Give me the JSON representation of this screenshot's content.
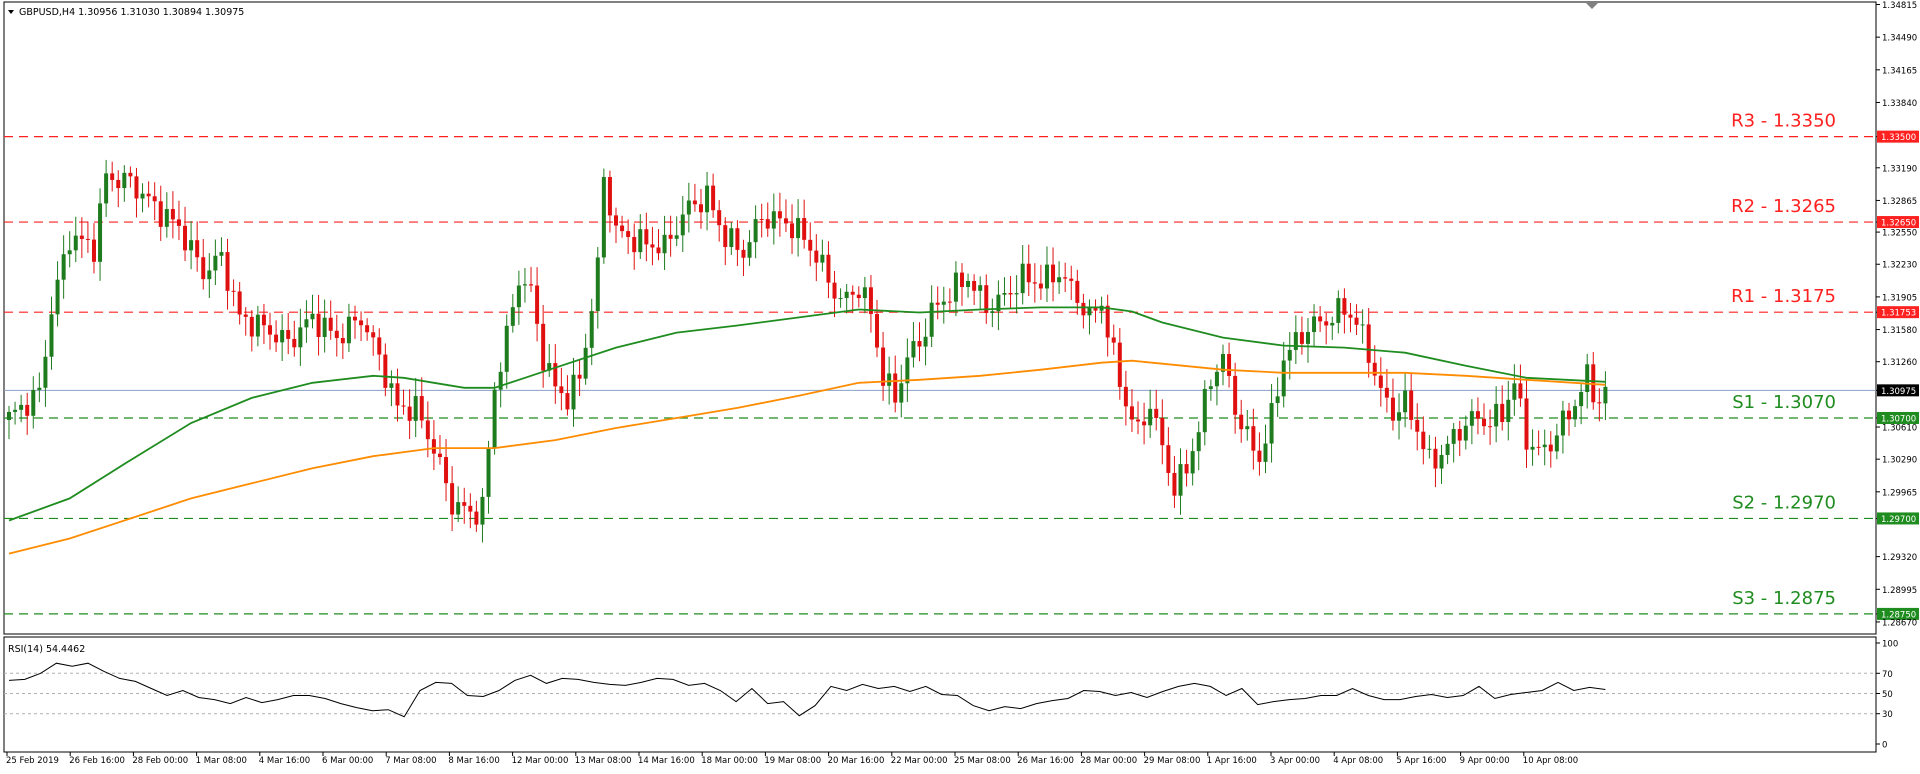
{
  "window": {
    "symbol_info": "GBPUSD,H4  1.30956 1.31030 1.30894 1.30975"
  },
  "rsi_panel": {
    "label": "RSI(14) 54.4462"
  },
  "colors": {
    "up_candle": "#1e7b1e",
    "down_candle": "#e01010",
    "ma_green": "#1f8c1f",
    "ma_orange": "#ff8c00",
    "resistance": "#ff2020",
    "support": "#1f8c1f",
    "current_price_line": "#8aa0c8",
    "rsi_line": "#000000",
    "frame": "#000000"
  },
  "chart_data": [
    {
      "type": "candlestick",
      "title": "GBPUSD,H4",
      "timeframe": "H4",
      "ohlc_last": {
        "open": 1.30956,
        "high": 1.3103,
        "low": 1.30894,
        "close": 1.30975
      },
      "ylim": [
        1.2855,
        1.3484
      ],
      "y_ticks": [
        "1.34815",
        "1.34490",
        "1.34165",
        "1.33840",
        "1.33500",
        "1.33190",
        "1.32865",
        "1.32650",
        "1.32550",
        "1.32230",
        "1.31905",
        "1.31753",
        "1.31580",
        "1.31260",
        "1.30975",
        "1.30700",
        "1.30610",
        "1.30290",
        "1.29965",
        "1.29700",
        "1.29320",
        "1.28995",
        "1.28750",
        "1.28670"
      ],
      "y_ticks_values": [
        1.34815,
        1.3449,
        1.34165,
        1.3384,
        1.335,
        1.3319,
        1.32865,
        1.3265,
        1.3255,
        1.3223,
        1.31905,
        1.31753,
        1.3158,
        1.3126,
        1.30975,
        1.307,
        1.3061,
        1.3029,
        1.29965,
        1.297,
        1.2932,
        1.28995,
        1.2875,
        1.2867
      ],
      "x_labels": [
        "25 Feb 2019",
        "26 Feb 16:00",
        "28 Feb 00:00",
        "1 Mar 08:00",
        "4 Mar 16:00",
        "6 Mar 00:00",
        "7 Mar 08:00",
        "8 Mar 16:00",
        "12 Mar 00:00",
        "13 Mar 08:00",
        "14 Mar 16:00",
        "18 Mar 00:00",
        "19 Mar 08:00",
        "20 Mar 16:00",
        "22 Mar 00:00",
        "25 Mar 08:00",
        "26 Mar 16:00",
        "28 Mar 00:00",
        "29 Mar 08:00",
        "1 Apr 16:00",
        "3 Apr 00:00",
        "4 Apr 08:00",
        "5 Apr 16:00",
        "9 Apr 00:00",
        "10 Apr 08:00"
      ],
      "levels": [
        {
          "label": "R3 - 1.3350",
          "tag": "1.33500",
          "value": 1.335,
          "kind": "resistance"
        },
        {
          "label": "R2 - 1.3265",
          "tag": "1.32650",
          "value": 1.3265,
          "kind": "resistance"
        },
        {
          "label": "R1 - 1.3175",
          "tag": "1.31753",
          "value": 1.31753,
          "kind": "resistance"
        },
        {
          "label": "S1 - 1.3070",
          "tag": "1.30700",
          "value": 1.307,
          "kind": "support"
        },
        {
          "label": "S2 - 1.2970",
          "tag": "1.29700",
          "value": 1.297,
          "kind": "support"
        },
        {
          "label": "S3 - 1.2875",
          "tag": "1.28750",
          "value": 1.2875,
          "kind": "support"
        }
      ],
      "current_price": {
        "tag": "1.30975",
        "value": 1.30975
      },
      "closes_anchor": [
        [
          0,
          1.307
        ],
        [
          5,
          1.3095
        ],
        [
          7,
          1.3178
        ],
        [
          10,
          1.325
        ],
        [
          14,
          1.324
        ],
        [
          16,
          1.331
        ],
        [
          20,
          1.3305
        ],
        [
          24,
          1.328
        ],
        [
          28,
          1.326
        ],
        [
          32,
          1.3215
        ],
        [
          35,
          1.323
        ],
        [
          38,
          1.317
        ],
        [
          42,
          1.316
        ],
        [
          46,
          1.3145
        ],
        [
          50,
          1.317
        ],
        [
          54,
          1.315
        ],
        [
          58,
          1.317
        ],
        [
          61,
          1.313
        ],
        [
          64,
          1.308
        ],
        [
          67,
          1.308
        ],
        [
          70,
          1.304
        ],
        [
          73,
          1.2985
        ],
        [
          76,
          1.2975
        ],
        [
          78,
          1.298
        ],
        [
          80,
          1.31
        ],
        [
          82,
          1.315
        ],
        [
          84,
          1.321
        ],
        [
          86,
          1.3195
        ],
        [
          88,
          1.313
        ],
        [
          90,
          1.31
        ],
        [
          92,
          1.309
        ],
        [
          94,
          1.311
        ],
        [
          96,
          1.318
        ],
        [
          97,
          1.322
        ],
        [
          98,
          1.331
        ],
        [
          100,
          1.3255
        ],
        [
          104,
          1.3245
        ],
        [
          108,
          1.324
        ],
        [
          112,
          1.328
        ],
        [
          115,
          1.329
        ],
        [
          118,
          1.325
        ],
        [
          121,
          1.3235
        ],
        [
          124,
          1.327
        ],
        [
          128,
          1.3265
        ],
        [
          131,
          1.325
        ],
        [
          134,
          1.322
        ],
        [
          137,
          1.3185
        ],
        [
          140,
          1.32
        ],
        [
          142,
          1.3175
        ],
        [
          144,
          1.311
        ],
        [
          146,
          1.309
        ],
        [
          148,
          1.313
        ],
        [
          150,
          1.3145
        ],
        [
          152,
          1.3175
        ],
        [
          155,
          1.3195
        ],
        [
          158,
          1.321
        ],
        [
          161,
          1.318
        ],
        [
          164,
          1.319
        ],
        [
          167,
          1.321
        ],
        [
          170,
          1.3205
        ],
        [
          173,
          1.3215
        ],
        [
          176,
          1.319
        ],
        [
          178,
          1.317
        ],
        [
          180,
          1.3185
        ],
        [
          182,
          1.313
        ],
        [
          184,
          1.3085
        ],
        [
          186,
          1.3055
        ],
        [
          188,
          1.3085
        ],
        [
          190,
          1.304
        ],
        [
          192,
          1.3
        ],
        [
          194,
          1.302
        ],
        [
          196,
          1.306
        ],
        [
          198,
          1.311
        ],
        [
          200,
          1.313
        ],
        [
          202,
          1.308
        ],
        [
          204,
          1.305
        ],
        [
          206,
          1.303
        ],
        [
          208,
          1.307
        ],
        [
          210,
          1.313
        ],
        [
          212,
          1.3145
        ],
        [
          214,
          1.316
        ],
        [
          216,
          1.3165
        ],
        [
          218,
          1.317
        ],
        [
          220,
          1.318
        ],
        [
          222,
          1.3165
        ],
        [
          224,
          1.3135
        ],
        [
          226,
          1.3095
        ],
        [
          228,
          1.3075
        ],
        [
          230,
          1.3085
        ],
        [
          232,
          1.306
        ],
        [
          234,
          1.3025
        ],
        [
          236,
          1.3035
        ],
        [
          238,
          1.305
        ],
        [
          240,
          1.3065
        ],
        [
          242,
          1.307
        ],
        [
          244,
          1.3065
        ],
        [
          246,
          1.3075
        ],
        [
          248,
          1.3105
        ],
        [
          250,
          1.305
        ],
        [
          252,
          1.3035
        ],
        [
          254,
          1.3045
        ],
        [
          256,
          1.3065
        ],
        [
          258,
          1.3085
        ],
        [
          260,
          1.311
        ],
        [
          262,
          1.3085
        ],
        [
          263,
          1.3098
        ]
      ],
      "ma_green": {
        "name": "",
        "points": [
          [
            0,
            1.2968
          ],
          [
            10,
            1.299
          ],
          [
            20,
            1.3028
          ],
          [
            30,
            1.3065
          ],
          [
            40,
            1.309
          ],
          [
            50,
            1.3105
          ],
          [
            60,
            1.3112
          ],
          [
            65,
            1.311
          ],
          [
            70,
            1.3105
          ],
          [
            75,
            1.31
          ],
          [
            80,
            1.31
          ],
          [
            85,
            1.311
          ],
          [
            90,
            1.312
          ],
          [
            100,
            1.314
          ],
          [
            110,
            1.3155
          ],
          [
            120,
            1.3162
          ],
          [
            130,
            1.317
          ],
          [
            140,
            1.3178
          ],
          [
            150,
            1.3175
          ],
          [
            160,
            1.3178
          ],
          [
            170,
            1.318
          ],
          [
            180,
            1.318
          ],
          [
            185,
            1.3176
          ],
          [
            190,
            1.3165
          ],
          [
            200,
            1.315
          ],
          [
            210,
            1.3142
          ],
          [
            220,
            1.314
          ],
          [
            230,
            1.3135
          ],
          [
            240,
            1.3122
          ],
          [
            250,
            1.311
          ],
          [
            263,
            1.3106
          ]
        ]
      },
      "ma_orange": {
        "name": "",
        "points": [
          [
            0,
            1.2935
          ],
          [
            10,
            1.295
          ],
          [
            20,
            1.297
          ],
          [
            30,
            1.299
          ],
          [
            40,
            1.3005
          ],
          [
            50,
            1.302
          ],
          [
            60,
            1.3032
          ],
          [
            70,
            1.304
          ],
          [
            80,
            1.304
          ],
          [
            90,
            1.3048
          ],
          [
            100,
            1.306
          ],
          [
            110,
            1.307
          ],
          [
            120,
            1.308
          ],
          [
            130,
            1.3092
          ],
          [
            140,
            1.3105
          ],
          [
            150,
            1.3108
          ],
          [
            160,
            1.3112
          ],
          [
            170,
            1.3118
          ],
          [
            180,
            1.3125
          ],
          [
            185,
            1.3127
          ],
          [
            190,
            1.3124
          ],
          [
            200,
            1.3118
          ],
          [
            210,
            1.3115
          ],
          [
            220,
            1.3115
          ],
          [
            230,
            1.3115
          ],
          [
            240,
            1.3112
          ],
          [
            250,
            1.3108
          ],
          [
            263,
            1.3103
          ]
        ]
      }
    },
    {
      "type": "line",
      "title": "RSI(14) 54.4462",
      "ylim": [
        0,
        100
      ],
      "y_ticks": [
        "100",
        "70",
        "50",
        "30",
        "0"
      ],
      "y_ticks_values": [
        100,
        70,
        50,
        30,
        0
      ],
      "levels_dashed": [
        70,
        50,
        30
      ],
      "values": [
        63,
        64,
        70,
        80,
        77,
        80,
        72,
        65,
        62,
        55,
        48,
        53,
        46,
        44,
        40,
        46,
        41,
        44,
        48,
        48,
        45,
        40,
        36,
        33,
        34,
        27,
        53,
        61,
        60,
        48,
        47,
        53,
        63,
        68,
        60,
        65,
        64,
        61,
        59,
        58,
        61,
        65,
        64,
        58,
        60,
        53,
        42,
        55,
        40,
        42,
        28,
        38,
        57,
        53,
        59,
        55,
        57,
        52,
        57,
        49,
        48,
        38,
        33,
        37,
        35,
        40,
        43,
        45,
        53,
        52,
        48,
        51,
        46,
        52,
        57,
        60,
        57,
        48,
        55,
        39,
        42,
        44,
        45,
        48,
        48,
        55,
        48,
        44,
        44,
        47,
        49,
        46,
        48,
        57,
        45,
        49,
        51,
        53,
        61,
        53,
        56,
        54
      ]
    }
  ]
}
